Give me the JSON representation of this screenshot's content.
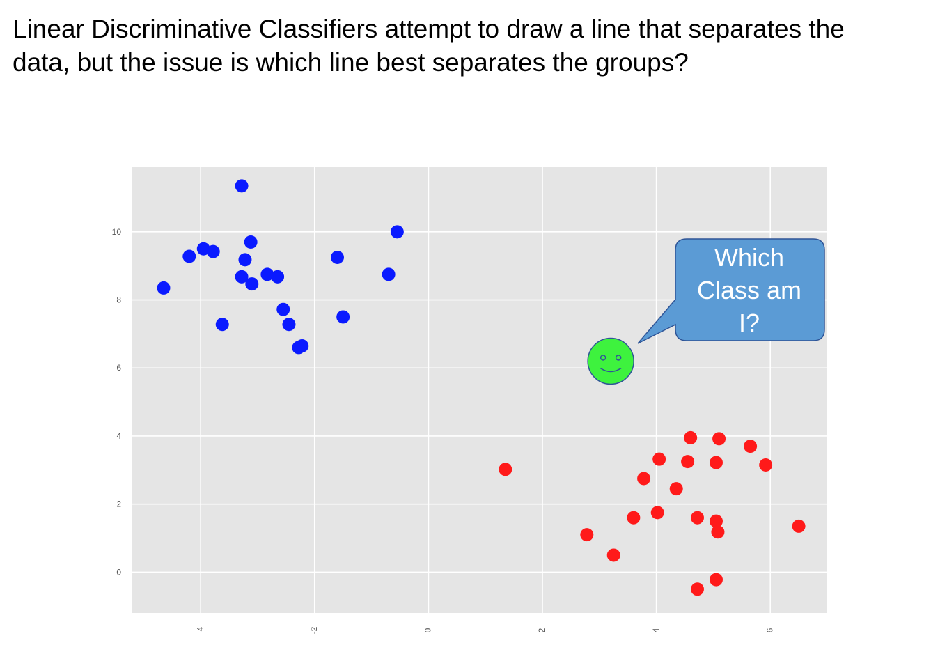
{
  "heading": {
    "line1": "Linear Discriminative Classifiers attempt to draw a line that separates the",
    "line2": "data, but the issue is which line best separates the groups?"
  },
  "callout": {
    "lines": [
      "Which",
      "Class am",
      "I?"
    ],
    "fill": "#5b9bd5",
    "border": "#2f5597"
  },
  "unknown_point": {
    "x": 3.2,
    "y": 6.2,
    "fill": "#3ef23e",
    "face_icon": "smiley-face-icon"
  },
  "chart_data": {
    "type": "scatter",
    "xlim": [
      -5.2,
      7.0
    ],
    "ylim": [
      -1.2,
      11.9
    ],
    "x_ticks": [
      -4,
      -2,
      0,
      2,
      4,
      6
    ],
    "x_tick_labels": [
      "-4",
      "-2",
      "0",
      "2",
      "4",
      "6"
    ],
    "y_ticks": [
      0,
      2,
      4,
      6,
      8,
      10
    ],
    "y_tick_labels": [
      "0",
      "2",
      "4",
      "6",
      "8",
      "10"
    ],
    "grid": true,
    "background": "#e5e5e5",
    "series": [
      {
        "color": "#0a1aff",
        "points": [
          [
            -3.28,
            11.35
          ],
          [
            -0.55,
            10.0
          ],
          [
            -3.12,
            9.7
          ],
          [
            -3.95,
            9.5
          ],
          [
            -3.78,
            9.42
          ],
          [
            -4.2,
            9.28
          ],
          [
            -3.22,
            9.18
          ],
          [
            -1.6,
            9.25
          ],
          [
            -2.83,
            8.75
          ],
          [
            -2.65,
            8.68
          ],
          [
            -3.28,
            8.68
          ],
          [
            -3.1,
            8.47
          ],
          [
            -0.7,
            8.75
          ],
          [
            -4.65,
            8.35
          ],
          [
            -2.55,
            7.72
          ],
          [
            -1.5,
            7.5
          ],
          [
            -3.62,
            7.28
          ],
          [
            -2.45,
            7.28
          ],
          [
            -2.22,
            6.65
          ],
          [
            -2.28,
            6.6
          ]
        ]
      },
      {
        "color": "#ff1a1a",
        "points": [
          [
            4.6,
            3.95
          ],
          [
            5.1,
            3.92
          ],
          [
            5.65,
            3.7
          ],
          [
            4.05,
            3.32
          ],
          [
            4.55,
            3.25
          ],
          [
            5.05,
            3.22
          ],
          [
            5.92,
            3.15
          ],
          [
            1.35,
            3.02
          ],
          [
            3.78,
            2.75
          ],
          [
            4.35,
            2.45
          ],
          [
            4.02,
            1.75
          ],
          [
            3.6,
            1.6
          ],
          [
            4.72,
            1.6
          ],
          [
            5.05,
            1.5
          ],
          [
            6.5,
            1.35
          ],
          [
            5.08,
            1.18
          ],
          [
            2.78,
            1.1
          ],
          [
            3.25,
            0.5
          ],
          [
            5.05,
            -0.22
          ],
          [
            4.72,
            -0.5
          ]
        ]
      }
    ]
  }
}
